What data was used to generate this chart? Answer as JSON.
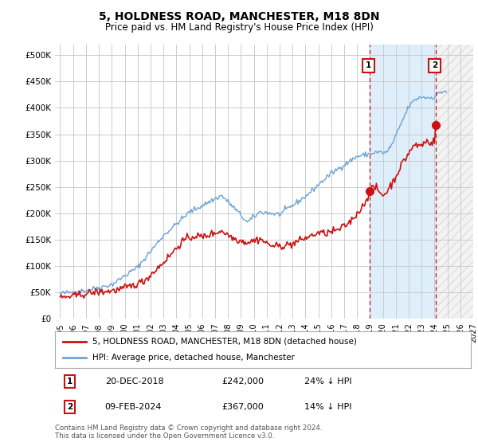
{
  "title": "5, HOLDNESS ROAD, MANCHESTER, M18 8DN",
  "subtitle": "Price paid vs. HM Land Registry's House Price Index (HPI)",
  "title_fontsize": 10,
  "subtitle_fontsize": 8.5,
  "ylim": [
    0,
    520000
  ],
  "yticks": [
    0,
    50000,
    100000,
    150000,
    200000,
    250000,
    300000,
    350000,
    400000,
    450000,
    500000
  ],
  "ytick_labels": [
    "£0",
    "£50K",
    "£100K",
    "£150K",
    "£200K",
    "£250K",
    "£300K",
    "£350K",
    "£400K",
    "£450K",
    "£500K"
  ],
  "hpi_color": "#6ba3d6",
  "price_color": "#cc1111",
  "annotation_color": "#cc1111",
  "bg_color": "#ffffff",
  "grid_color": "#cccccc",
  "legend_entry1": "5, HOLDNESS ROAD, MANCHESTER, M18 8DN (detached house)",
  "legend_entry2": "HPI: Average price, detached house, Manchester",
  "marker1_date": 2019.0,
  "marker1_price": 242000,
  "marker2_date": 2024.12,
  "marker2_price": 367000,
  "shade_start": 2019.0,
  "shade_end": 2024.12,
  "hatch_start": 2024.12,
  "hatch_end": 2027.0,
  "xlim_start": 1994.6,
  "xlim_end": 2027.0,
  "xticks": [
    1995,
    1996,
    1997,
    1998,
    1999,
    2000,
    2001,
    2002,
    2003,
    2004,
    2005,
    2006,
    2007,
    2008,
    2009,
    2010,
    2011,
    2012,
    2013,
    2014,
    2015,
    2016,
    2017,
    2018,
    2019,
    2020,
    2021,
    2022,
    2023,
    2024,
    2025,
    2026,
    2027
  ],
  "footer_line1": "Contains HM Land Registry data © Crown copyright and database right 2024.",
  "footer_line2": "This data is licensed under the Open Government Licence v3.0."
}
